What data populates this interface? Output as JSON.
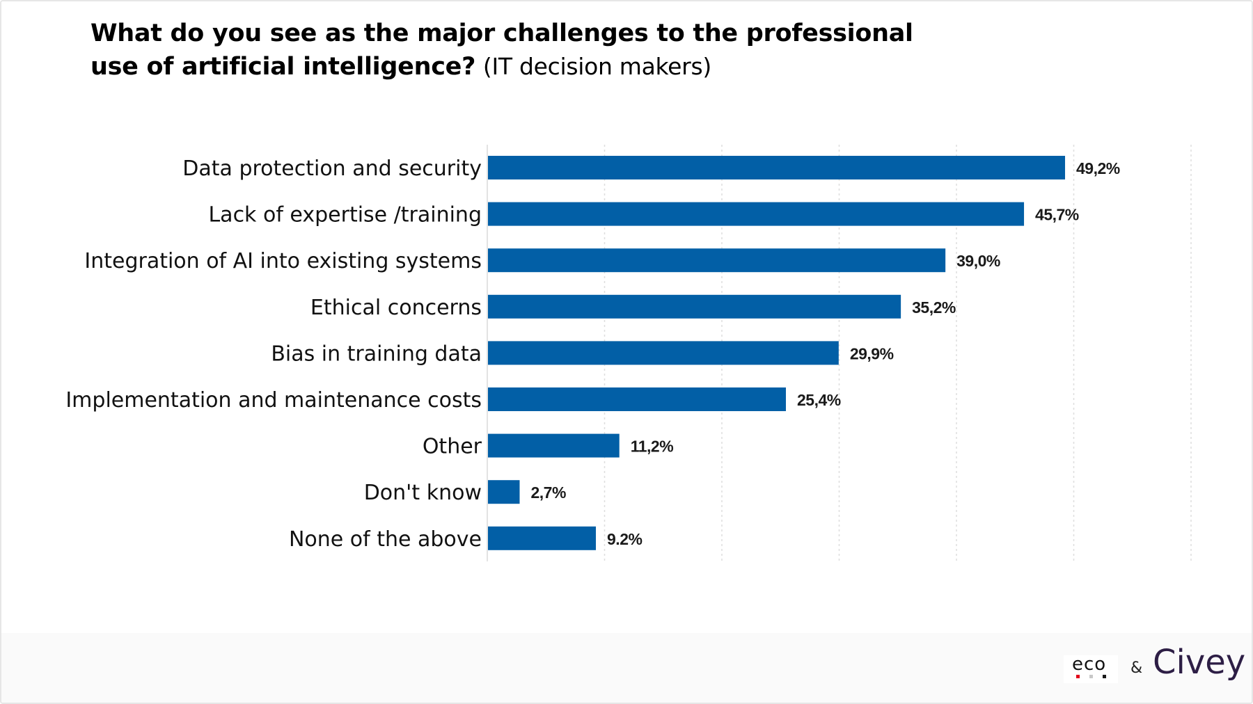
{
  "header": {
    "question": "What do you see as the major challenges to the professional use of artificial intelligence?",
    "audience": "(IT decision makers)"
  },
  "chart_data": {
    "type": "bar",
    "orientation": "horizontal",
    "title": "What do you see as the major challenges to the professional use of artificial intelligence? (IT decision makers)",
    "xlabel": "",
    "ylabel": "",
    "xlim": [
      0,
      60
    ],
    "grid": true,
    "unit": "%",
    "categories": [
      "Data protection and security",
      "Lack of expertise /training",
      "Integration of AI into existing systems",
      "Ethical concerns",
      "Bias in training data",
      "Implementation and maintenance costs",
      "Other",
      "Don't know",
      "None of the above"
    ],
    "values": [
      49.2,
      45.7,
      39.0,
      35.2,
      29.9,
      25.4,
      11.2,
      2.7,
      9.2
    ],
    "data_labels": [
      "49,2%",
      "45,7%",
      "39,0%",
      "35,2%",
      "29,9%",
      "25,4%",
      "11,2%",
      "2,7%",
      "9.2%"
    ],
    "bar_color": "#025fa6"
  },
  "footer": {
    "logo_eco": "eco",
    "eco_dot_colors": [
      "#e2001a",
      "#c8c8c8",
      "#1a1a1a"
    ],
    "ampersand": "&",
    "logo_civey": "Civey"
  }
}
